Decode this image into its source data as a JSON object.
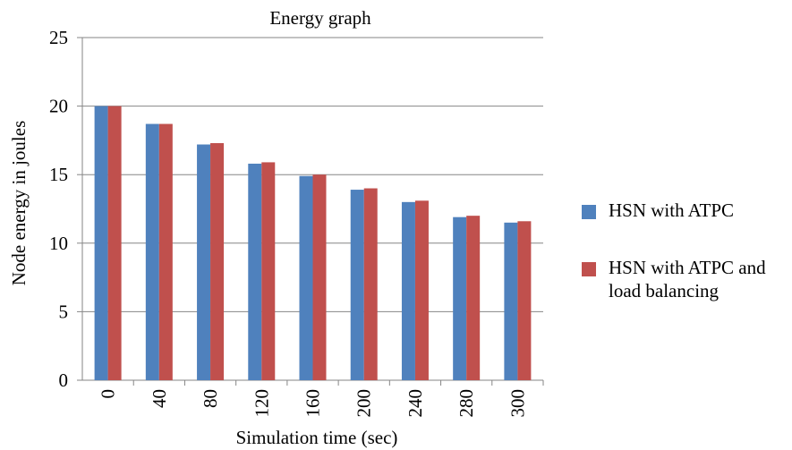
{
  "chart_data": {
    "type": "bar",
    "title": "Energy graph",
    "xlabel": "Simulation time (sec)",
    "ylabel": "Node energy in joules",
    "categories": [
      "0",
      "40",
      "80",
      "120",
      "160",
      "200",
      "240",
      "280",
      "300"
    ],
    "series": [
      {
        "name": "HSN with ATPC",
        "color": "#4F81BD",
        "values": [
          20,
          18.7,
          17.2,
          15.8,
          14.9,
          13.9,
          13.0,
          11.9,
          11.5
        ]
      },
      {
        "name": "HSN with ATPC and load balancing",
        "color": "#C0504D",
        "values": [
          20,
          18.7,
          17.3,
          15.9,
          15.0,
          14.0,
          13.1,
          12.0,
          11.6
        ]
      }
    ],
    "ylim": [
      0,
      25
    ],
    "yticks": [
      0,
      5,
      10,
      15,
      20,
      25
    ],
    "grid": true,
    "legend_position": "right",
    "x_tick_rotation": "vertical"
  },
  "legend": {
    "series1_line1": "HSN with ATPC",
    "series2_line1": "HSN with ATPC and",
    "series2_line2": "load balancing"
  }
}
